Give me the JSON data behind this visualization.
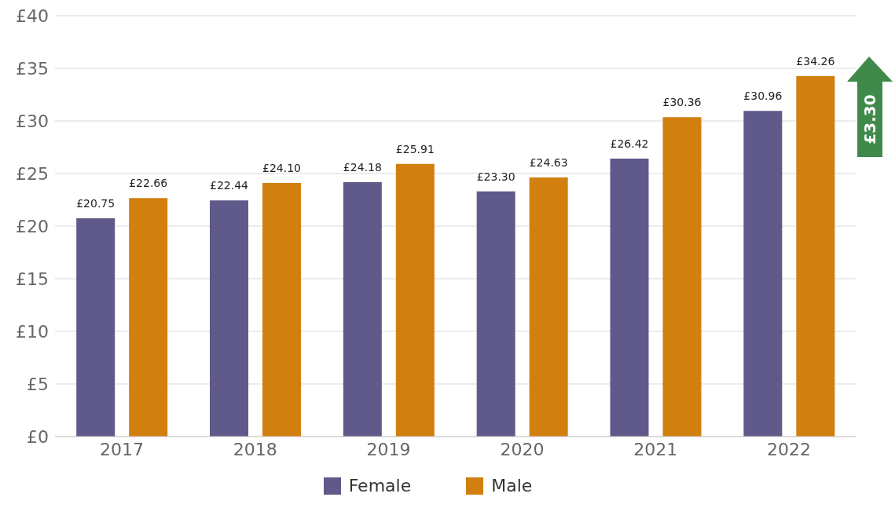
{
  "chart_data": {
    "type": "bar",
    "categories": [
      "2017",
      "2018",
      "2019",
      "2020",
      "2021",
      "2022"
    ],
    "series": [
      {
        "name": "Female",
        "color": "#5f5a8a",
        "values": [
          20.75,
          22.44,
          24.18,
          23.3,
          26.42,
          30.96
        ],
        "value_labels": [
          "£20.75",
          "£22.44",
          "£24.18",
          "£23.30",
          "£26.42",
          "£30.96"
        ]
      },
      {
        "name": "Male",
        "color": "#d17f0f",
        "values": [
          22.66,
          24.1,
          25.91,
          24.63,
          30.36,
          34.26
        ],
        "value_labels": [
          "£22.66",
          "£24.10",
          "£25.91",
          "£24.63",
          "£30.36",
          "£34.26"
        ]
      }
    ],
    "ylim": [
      0,
      40
    ],
    "yticks": [
      {
        "value": 0,
        "label": "£0"
      },
      {
        "value": 5,
        "label": "£5"
      },
      {
        "value": 10,
        "label": "£10"
      },
      {
        "value": 15,
        "label": "£15"
      },
      {
        "value": 20,
        "label": "£20"
      },
      {
        "value": 25,
        "label": "£25"
      },
      {
        "value": 30,
        "label": "£30"
      },
      {
        "value": 35,
        "label": "£35"
      },
      {
        "value": 40,
        "label": "£40"
      }
    ],
    "grid": "y",
    "legend": "bottom",
    "annotations": [
      "£3.30"
    ]
  }
}
